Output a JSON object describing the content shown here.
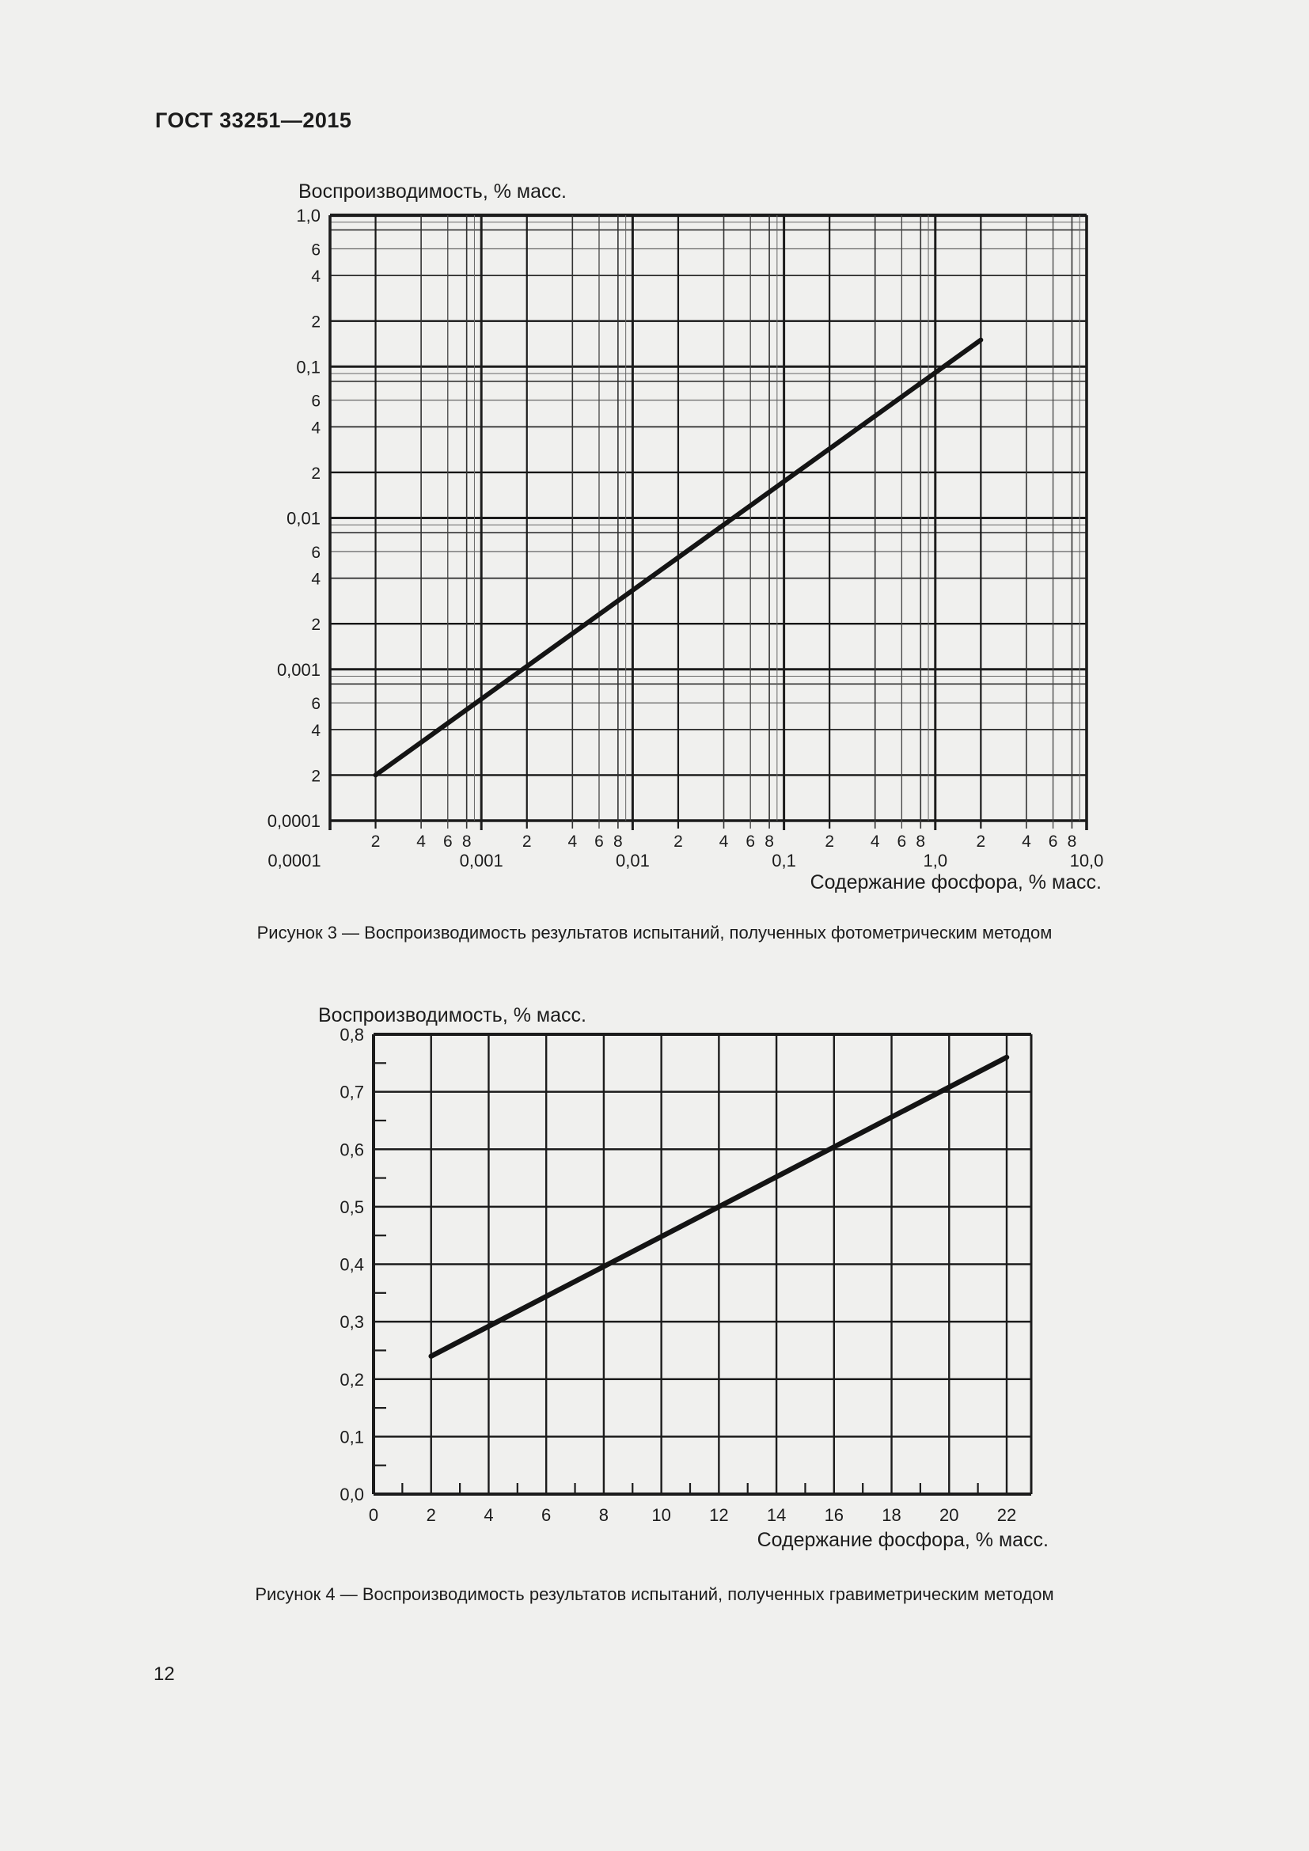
{
  "page": {
    "header": "ГОСТ 33251—2015",
    "page_number": "12",
    "background_color": "#f0f0ee",
    "ink_color": "#1c1c1c"
  },
  "figure3": {
    "y_axis_title": "Воспроизводимость, % масс.",
    "x_axis_title": "Содержание фосфора, % масс.",
    "caption": "Рисунок 3 — Воспроизводимость результатов испытаний, полученных фотометрическим методом"
  },
  "figure4": {
    "y_axis_title": "Воспроизводимость, % масс.",
    "x_axis_title": "Содержание фосфора, % масс.",
    "caption": "Рисунок 4 — Воспроизводимость результатов испытаний, полученных гравиметрическим методом"
  },
  "chart_data": [
    {
      "id": "figure3",
      "type": "line",
      "x_scale": "log",
      "y_scale": "log",
      "xlim": [
        0.0001,
        10.0
      ],
      "ylim": [
        0.0001,
        1.0
      ],
      "xlabel": "Содержание фосфора, % масс.",
      "ylabel": "Воспроизводимость, % масс.",
      "grid": true,
      "legend": false,
      "x_decade_tick_labels": [
        "0,0001",
        "0,001",
        "0,01",
        "0,1",
        "1,0",
        "10,0"
      ],
      "x_minor_tick_labels": [
        "2",
        "4",
        "6",
        "8"
      ],
      "y_decade_tick_labels": [
        "1,0",
        "0,1",
        "0,01",
        "0,001",
        "0,0001"
      ],
      "y_minor_tick_labels": [
        "6",
        "4",
        "2"
      ],
      "series": [
        {
          "name": "reproducibility-photometric",
          "shape": "straight-line-in-loglog",
          "points": [
            [
              0.0002,
              0.0002
            ],
            [
              2.0,
              0.15
            ]
          ]
        }
      ]
    },
    {
      "id": "figure4",
      "type": "line",
      "x_scale": "linear",
      "y_scale": "linear",
      "xlim": [
        0,
        22.85
      ],
      "ylim": [
        0.0,
        0.8
      ],
      "xlabel": "Содержание фосфора, % масс.",
      "ylabel": "Воспроизводимость, % масс.",
      "grid": true,
      "legend": false,
      "x_tick_values": [
        0,
        2,
        4,
        6,
        8,
        10,
        12,
        14,
        16,
        18,
        20,
        22
      ],
      "x_tick_labels": [
        "0",
        "2",
        "4",
        "6",
        "8",
        "10",
        "12",
        "14",
        "16",
        "18",
        "20",
        "22"
      ],
      "y_tick_values": [
        0.8,
        0.7,
        0.6,
        0.5,
        0.4,
        0.3,
        0.2,
        0.1,
        0.0
      ],
      "y_tick_labels": [
        "0,8",
        "0,7",
        "0,6",
        "0,5",
        "0,4",
        "0,3",
        "0,2",
        "0,1",
        "0,0"
      ],
      "x_minor_tick_values": [
        1,
        3,
        5,
        7,
        9,
        11,
        13,
        15,
        17,
        19,
        21
      ],
      "y_minor_tick_values": [
        0.05,
        0.15,
        0.25,
        0.35,
        0.45,
        0.55,
        0.65,
        0.75
      ],
      "series": [
        {
          "name": "reproducibility-gravimetric",
          "shape": "straight-line",
          "points": [
            [
              2,
              0.24
            ],
            [
              22,
              0.76
            ]
          ]
        }
      ]
    }
  ]
}
